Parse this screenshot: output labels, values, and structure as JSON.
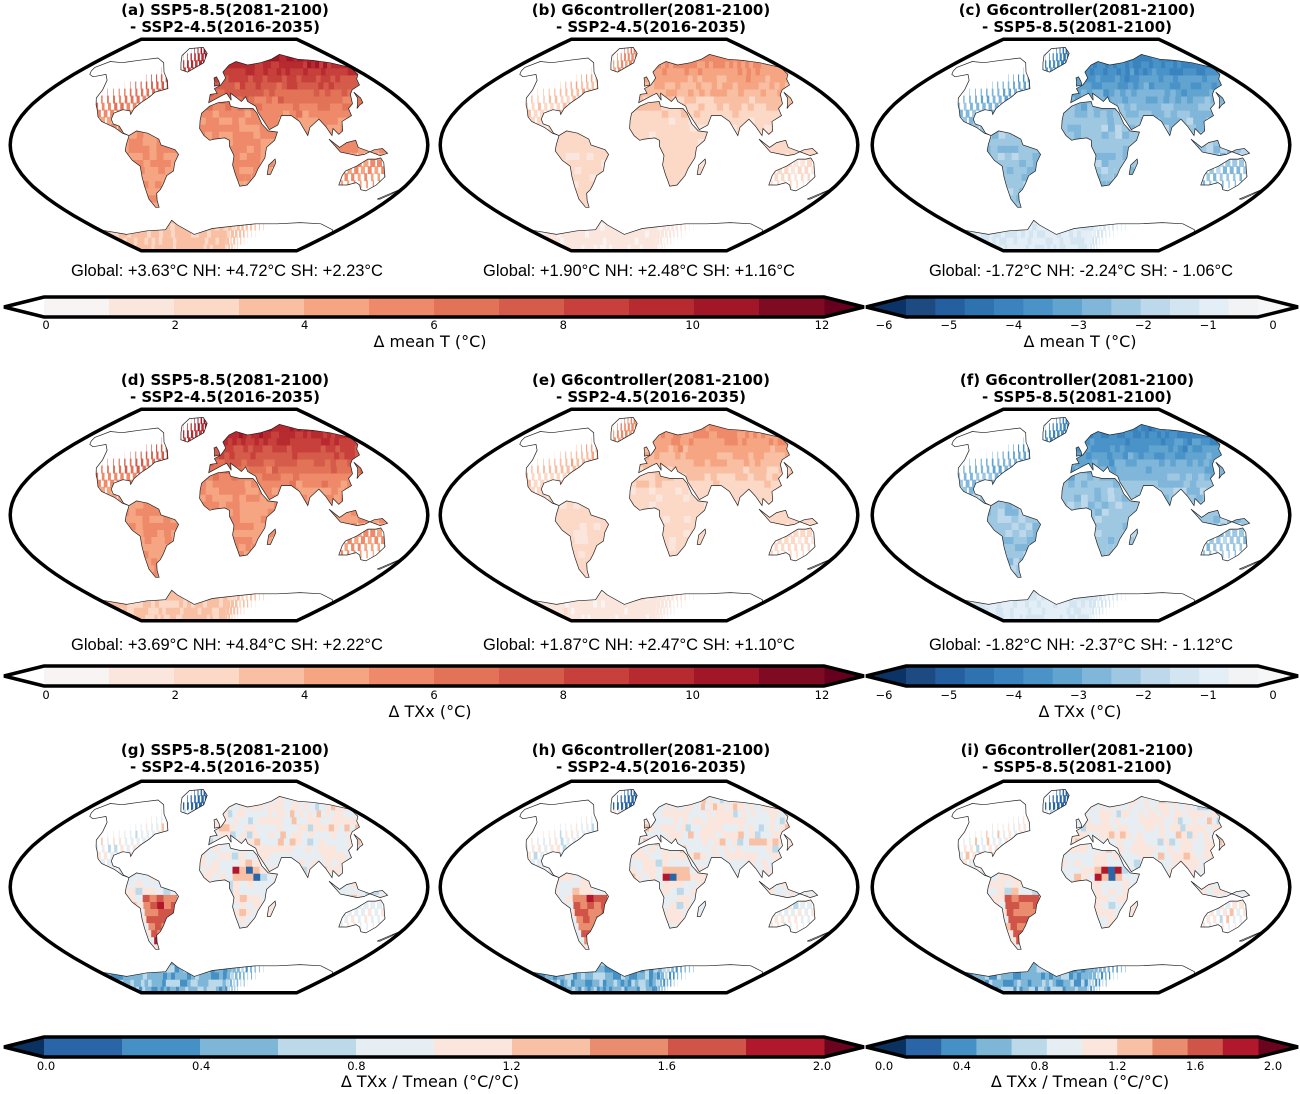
{
  "chart_data": [
    {
      "type": "heatmap",
      "row": "mean temperature",
      "panels": [
        {
          "id": "a",
          "title_line1": "(a) SSP5-8.5(2081-2100)",
          "title_line2": "- SSP2-4.5(2016-2035)",
          "stats": "Global: +3.63°C NH: +4.72°C SH: +2.23°C",
          "global": 3.63,
          "nh": 4.72,
          "sh": 2.23,
          "palette": "warm-strong"
        },
        {
          "id": "b",
          "title_line1": "(b) G6controller(2081-2100)",
          "title_line2": "- SSP2-4.5(2016-2035)",
          "stats": "Global: +1.90°C NH: +2.48°C SH: +1.16°C",
          "global": 1.9,
          "nh": 2.48,
          "sh": 1.16,
          "palette": "warm-weak"
        },
        {
          "id": "c",
          "title_line1": "(c) G6controller(2081-2100)",
          "title_line2": "- SSP5-8.5(2081-2100)",
          "stats": "Global: -1.72°C NH: -2.24°C SH: - 1.06°C",
          "global": -1.72,
          "nh": -2.24,
          "sh": -1.06,
          "palette": "cool"
        }
      ],
      "colorbars": [
        {
          "label": "Δ mean T (°C)",
          "ticks": [
            "0",
            "2",
            "4",
            "6",
            "8",
            "10",
            "12"
          ],
          "vmin": 0,
          "vmax": 12,
          "n": 12,
          "cmap": "Reds"
        },
        {
          "label": "Δ mean T (°C)",
          "ticks": [
            "−6",
            "−5",
            "−4",
            "−3",
            "−2",
            "−1",
            "0"
          ],
          "vmin": -6,
          "vmax": 0,
          "n": 12,
          "cmap": "Blues_r"
        }
      ]
    },
    {
      "type": "heatmap",
      "row": "TXx",
      "panels": [
        {
          "id": "d",
          "title_line1": "(d) SSP5-8.5(2081-2100)",
          "title_line2": "- SSP2-4.5(2016-2035)",
          "stats": "Global: +3.69°C NH: +4.84°C SH: +2.22°C",
          "global": 3.69,
          "nh": 4.84,
          "sh": 2.22,
          "palette": "warm-strong"
        },
        {
          "id": "e",
          "title_line1": "(e) G6controller(2081-2100)",
          "title_line2": "- SSP2-4.5(2016-2035)",
          "stats": "Global: +1.87°C NH: +2.47°C SH: +1.10°C",
          "global": 1.87,
          "nh": 2.47,
          "sh": 1.1,
          "palette": "warm-weak"
        },
        {
          "id": "f",
          "title_line1": "(f) G6controller(2081-2100)",
          "title_line2": "- SSP5-8.5(2081-2100)",
          "stats": "Global: -1.82°C NH: -2.37°C SH: - 1.12°C",
          "global": -1.82,
          "nh": -2.37,
          "sh": -1.12,
          "palette": "cool"
        }
      ],
      "colorbars": [
        {
          "label": "Δ TXx (°C)",
          "ticks": [
            "0",
            "2",
            "4",
            "6",
            "8",
            "10",
            "12"
          ],
          "vmin": 0,
          "vmax": 12,
          "n": 12,
          "cmap": "Reds"
        },
        {
          "label": "Δ TXx (°C)",
          "ticks": [
            "−6",
            "−5",
            "−4",
            "−3",
            "−2",
            "−1",
            "0"
          ],
          "vmin": -6,
          "vmax": 0,
          "n": 12,
          "cmap": "Blues_r"
        }
      ]
    },
    {
      "type": "heatmap",
      "row": "TXx / Tmean ratio",
      "panels": [
        {
          "id": "g",
          "title_line1": "(g) SSP5-8.5(2081-2100)",
          "title_line2": "- SSP2-4.5(2016-2035)",
          "palette": "diverging"
        },
        {
          "id": "h",
          "title_line1": "(h) G6controller(2081-2100)",
          "title_line2": "- SSP2-4.5(2016-2035)",
          "palette": "diverging"
        },
        {
          "id": "i",
          "title_line1": "(i) G6controller(2081-2100)",
          "title_line2": "- SSP5-8.5(2081-2100)",
          "palette": "diverging"
        }
      ],
      "colorbars": [
        {
          "label": "Δ TXx / Tmean (°C/°C)",
          "ticks": [
            "0.0",
            "0.4",
            "0.8",
            "1.2",
            "1.6",
            "2.0"
          ],
          "vmin": 0.0,
          "vmax": 2.0,
          "n": 10,
          "cmap": "RdBu_r"
        },
        {
          "label": "Δ TXx / Tmean (°C/°C)",
          "ticks": [
            "0.0",
            "0.4",
            "0.8",
            "1.2",
            "1.6",
            "2.0"
          ],
          "vmin": 0.0,
          "vmax": 2.0,
          "n": 10,
          "cmap": "RdBu_r"
        }
      ]
    }
  ],
  "colors": {
    "reds": [
      "#f7f4f3",
      "#fbe6dd",
      "#fcd8c6",
      "#f9bfa3",
      "#f6a582",
      "#ee8a69",
      "#e27357",
      "#d55b4a",
      "#c7403b",
      "#b72a30",
      "#a11728",
      "#7e0b22"
    ],
    "reds_under": "#ffffff",
    "reds_over": "#67001f",
    "blues": [
      "#1d4a80",
      "#24609f",
      "#2f72b0",
      "#3b83be",
      "#4993c9",
      "#62a4d0",
      "#7fb6d9",
      "#9ec8e2",
      "#bcd8ea",
      "#d3e5f1",
      "#e3eef6",
      "#f1f3f5"
    ],
    "blues_under": "#0c3366",
    "blues_over": "#f7f7f7",
    "rdbu": [
      "#2a65a8",
      "#4590c4",
      "#7eb6d8",
      "#bcd9ea",
      "#e6eef3",
      "#fbe6de",
      "#f8c1a6",
      "#ea8d6f",
      "#d05548",
      "#b1182c"
    ],
    "rdbu_under": "#0a3160",
    "rdbu_over": "#6c0420"
  }
}
